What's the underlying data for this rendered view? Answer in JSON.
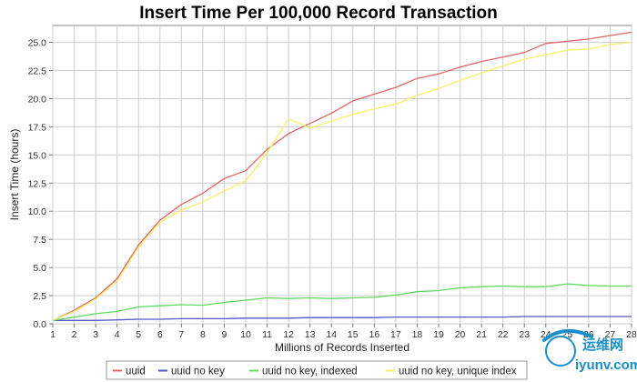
{
  "chart_data": {
    "type": "line",
    "title": "Insert Time Per 100,000 Record Transaction",
    "xlabel": "Millions of Records Inserted",
    "ylabel": "Insert Time (hours)",
    "x": [
      1,
      2,
      3,
      4,
      5,
      6,
      7,
      8,
      9,
      10,
      11,
      12,
      13,
      14,
      15,
      16,
      17,
      18,
      19,
      20,
      21,
      22,
      23,
      24,
      25,
      26,
      27,
      28
    ],
    "xlim": [
      1,
      28
    ],
    "ylim": [
      0,
      26.5
    ],
    "yticks": [
      0.0,
      2.5,
      5.0,
      7.5,
      10.0,
      12.5,
      15.0,
      17.5,
      20.0,
      22.5,
      25.0
    ],
    "ytick_labels": [
      "0.0",
      "2.5",
      "5.0",
      "7.5",
      "10.0",
      "12.5",
      "15.0",
      "17.5",
      "20.0",
      "22.5",
      "25.0"
    ],
    "grid": true,
    "legend_position": "bottom",
    "series": [
      {
        "name": "uuid",
        "color": "#e06666",
        "values": [
          0.3,
          1.2,
          2.3,
          4.0,
          7.0,
          9.2,
          10.6,
          11.6,
          12.9,
          13.6,
          15.5,
          16.9,
          17.8,
          18.7,
          19.8,
          20.4,
          21.0,
          21.8,
          22.2,
          22.8,
          23.3,
          23.7,
          24.1,
          24.9,
          25.1,
          25.3,
          25.6,
          25.9
        ]
      },
      {
        "name": "uuid no key",
        "color": "#5555cc",
        "values": [
          0.3,
          0.3,
          0.3,
          0.35,
          0.4,
          0.4,
          0.45,
          0.45,
          0.45,
          0.5,
          0.5,
          0.5,
          0.55,
          0.55,
          0.55,
          0.55,
          0.6,
          0.6,
          0.6,
          0.6,
          0.6,
          0.6,
          0.65,
          0.65,
          0.65,
          0.65,
          0.65,
          0.65
        ]
      },
      {
        "name": "uuid no key, indexed",
        "color": "#5ddc5d",
        "values": [
          0.3,
          0.6,
          0.9,
          1.1,
          1.5,
          1.6,
          1.7,
          1.65,
          1.9,
          2.1,
          2.3,
          2.25,
          2.3,
          2.25,
          2.3,
          2.35,
          2.55,
          2.85,
          2.95,
          3.2,
          3.3,
          3.35,
          3.3,
          3.3,
          3.55,
          3.4,
          3.35,
          3.35
        ]
      },
      {
        "name": "uuid no key, unique index",
        "color": "#f5f06a",
        "values": [
          0.3,
          1.1,
          2.2,
          3.8,
          6.8,
          9.0,
          10.1,
          10.8,
          11.8,
          12.7,
          15.2,
          18.2,
          17.4,
          18.0,
          18.6,
          19.1,
          19.5,
          20.3,
          20.9,
          21.6,
          22.3,
          22.9,
          23.5,
          23.9,
          24.3,
          24.4,
          24.8,
          25.0
        ]
      }
    ]
  },
  "watermark": {
    "text": "iyunv.com",
    "cn_text": "运维网",
    "color": "#1c8ec9"
  }
}
